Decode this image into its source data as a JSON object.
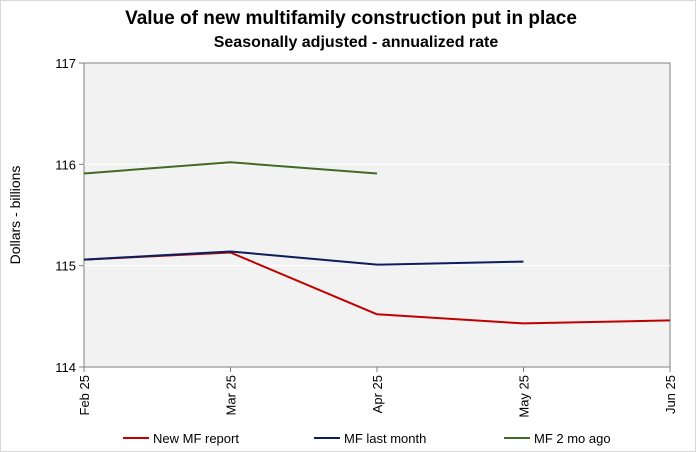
{
  "chart_data": {
    "type": "line",
    "title": "Value of new multifamily  construction put in place",
    "subtitle": "Seasonally adjusted - annualized rate",
    "xlabel": "",
    "ylabel": "Dollars - billions",
    "categories": [
      "Feb 25",
      "Mar 25",
      "Apr 25",
      "May 25",
      "Jun 25"
    ],
    "ylim": [
      114,
      117
    ],
    "yticks": [
      114,
      115,
      116,
      117
    ],
    "grid": true,
    "legend_position": "bottom",
    "series": [
      {
        "name": "New MF report",
        "color": "#c00000",
        "values": [
          115.06,
          115.13,
          114.52,
          114.43,
          114.46
        ]
      },
      {
        "name": "MF last month",
        "color": "#0b1f5c",
        "values": [
          115.06,
          115.14,
          115.01,
          115.04,
          null
        ]
      },
      {
        "name": "MF 2 mo ago",
        "color": "#3f6b26",
        "values": [
          115.91,
          116.02,
          115.91,
          null,
          null
        ]
      }
    ]
  }
}
